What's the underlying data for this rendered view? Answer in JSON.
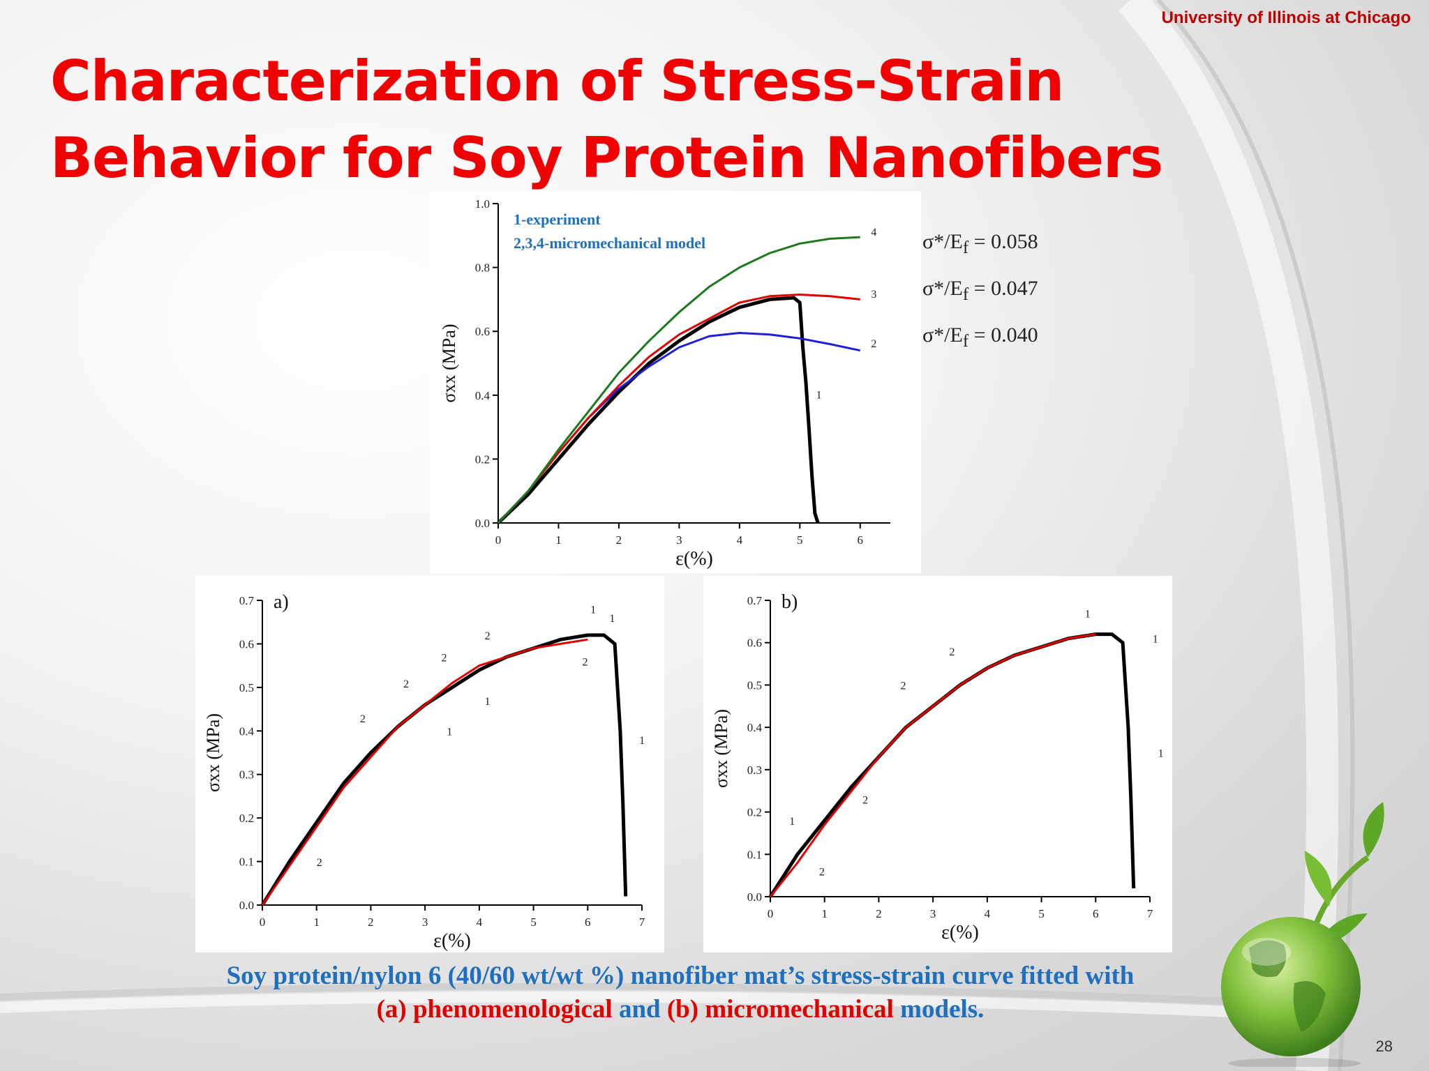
{
  "header": {
    "university": "University of Illinois at Chicago"
  },
  "slide": {
    "title_line1": "Characterization of Stress-Strain",
    "title_line2": "Behavior for Soy Protein Nanofibers",
    "page_number": "28"
  },
  "equations": [
    {
      "label": "σ*/E",
      "sub": "f",
      "value": "= 0.058"
    },
    {
      "label": "σ*/E",
      "sub": "f",
      "value": "= 0.047"
    },
    {
      "label": "σ*/E",
      "sub": "f",
      "value": "= 0.040"
    }
  ],
  "caption": {
    "line1": "Soy protein/nylon 6 (40/60 wt/wt %) nanofiber mat’s stress-strain curve fitted with",
    "part_a": "(a) phenomenological",
    "and": " and ",
    "part_b": "(b) micromechanical",
    "models": " models."
  },
  "colors": {
    "title": "#f00000",
    "caption": "#1f6fbf",
    "exp": "#000000",
    "fit": "#e00000",
    "model2": "#1f1fd6",
    "model4": "#1a7a1a",
    "legend": "#1f6fbf"
  },
  "chart_data": [
    {
      "type": "line",
      "xlabel": "ε(%)",
      "ylabel": "σxx (MPa)",
      "xlim": [
        0,
        6.5
      ],
      "ylim": [
        0,
        1.0
      ],
      "xticks": [
        "0",
        "1",
        "2",
        "3",
        "4",
        "5",
        "6"
      ],
      "yticks": [
        "0.0",
        "0.2",
        "0.4",
        "0.6",
        "0.8",
        "1.0"
      ],
      "legend": [
        "1-experiment",
        "2,3,4-micromechanical model"
      ],
      "series": [
        {
          "name": "1",
          "color": "#000000",
          "x": [
            0,
            0.5,
            1,
            1.5,
            2,
            2.5,
            3,
            3.5,
            4,
            4.5,
            4.9,
            5.0,
            5.05,
            5.1,
            5.15,
            5.2,
            5.25,
            5.3
          ],
          "y": [
            0,
            0.09,
            0.2,
            0.31,
            0.41,
            0.5,
            0.57,
            0.63,
            0.675,
            0.7,
            0.705,
            0.69,
            0.55,
            0.44,
            0.3,
            0.15,
            0.03,
            0
          ]
        },
        {
          "name": "2",
          "color": "#1f1fd6",
          "x": [
            0,
            0.5,
            1,
            1.5,
            2,
            2.5,
            3,
            3.5,
            4,
            4.5,
            5,
            5.5,
            6
          ],
          "y": [
            0,
            0.1,
            0.22,
            0.33,
            0.42,
            0.49,
            0.55,
            0.585,
            0.595,
            0.59,
            0.578,
            0.56,
            0.54
          ]
        },
        {
          "name": "3",
          "color": "#e00000",
          "x": [
            0,
            0.5,
            1,
            1.5,
            2,
            2.5,
            3,
            3.5,
            4,
            4.5,
            5,
            5.5,
            6
          ],
          "y": [
            0,
            0.1,
            0.22,
            0.33,
            0.43,
            0.52,
            0.59,
            0.64,
            0.69,
            0.71,
            0.715,
            0.71,
            0.7
          ]
        },
        {
          "name": "4",
          "color": "#1a7a1a",
          "x": [
            0,
            0.5,
            1,
            1.5,
            2,
            2.5,
            3,
            3.5,
            4,
            4.5,
            5,
            5.5,
            6
          ],
          "y": [
            0,
            0.1,
            0.23,
            0.35,
            0.47,
            0.57,
            0.66,
            0.74,
            0.8,
            0.845,
            0.875,
            0.89,
            0.895
          ]
        }
      ],
      "point_labels": [
        "4",
        "3",
        "2",
        "1"
      ]
    },
    {
      "type": "line",
      "panel": "a)",
      "xlabel": "ε(%)",
      "ylabel": "σxx (MPa)",
      "xlim": [
        0,
        7
      ],
      "ylim": [
        0,
        0.7
      ],
      "xticks": [
        "0",
        "1",
        "2",
        "3",
        "4",
        "5",
        "6",
        "7"
      ],
      "yticks": [
        "0.0",
        "0.1",
        "0.2",
        "0.3",
        "0.4",
        "0.5",
        "0.6",
        "0.7"
      ],
      "series": [
        {
          "name": "1",
          "color": "#000000",
          "x": [
            0,
            0.5,
            1,
            1.5,
            2,
            2.5,
            3,
            3.5,
            4,
            4.5,
            5,
            5.5,
            6,
            6.3,
            6.5,
            6.6,
            6.65,
            6.7
          ],
          "y": [
            0,
            0.1,
            0.19,
            0.28,
            0.35,
            0.41,
            0.46,
            0.5,
            0.54,
            0.57,
            0.59,
            0.61,
            0.62,
            0.62,
            0.6,
            0.4,
            0.23,
            0.02
          ]
        },
        {
          "name": "2",
          "color": "#e00000",
          "x": [
            0,
            0.5,
            1,
            1.5,
            2,
            2.5,
            3,
            3.5,
            4,
            4.5,
            5,
            5.5,
            6
          ],
          "y": [
            0,
            0.09,
            0.18,
            0.27,
            0.34,
            0.41,
            0.46,
            0.51,
            0.55,
            0.57,
            0.59,
            0.6,
            0.61
          ]
        }
      ],
      "point_labels": [
        "1",
        "2",
        "2",
        "2",
        "2",
        "2",
        "2",
        "1",
        "1",
        "1",
        "1"
      ]
    },
    {
      "type": "line",
      "panel": "b)",
      "xlabel": "ε(%)",
      "ylabel": "σxx (MPa)",
      "xlim": [
        0,
        7
      ],
      "ylim": [
        0,
        0.7
      ],
      "xticks": [
        "0",
        "1",
        "2",
        "3",
        "4",
        "5",
        "6",
        "7"
      ],
      "yticks": [
        "0.0",
        "0.1",
        "0.2",
        "0.3",
        "0.4",
        "0.5",
        "0.6",
        "0.7"
      ],
      "series": [
        {
          "name": "1",
          "color": "#000000",
          "x": [
            0,
            0.5,
            1,
            1.5,
            2,
            2.5,
            3,
            3.5,
            4,
            4.5,
            5,
            5.5,
            6,
            6.3,
            6.5,
            6.6,
            6.65,
            6.7
          ],
          "y": [
            0,
            0.1,
            0.18,
            0.26,
            0.33,
            0.4,
            0.45,
            0.5,
            0.54,
            0.57,
            0.59,
            0.61,
            0.62,
            0.62,
            0.6,
            0.4,
            0.23,
            0.02
          ]
        },
        {
          "name": "2",
          "color": "#e00000",
          "x": [
            0,
            0.5,
            1,
            1.5,
            2,
            2.5,
            3,
            3.5,
            4,
            4.5,
            5,
            5.5,
            6
          ],
          "y": [
            0,
            0.08,
            0.17,
            0.25,
            0.33,
            0.4,
            0.45,
            0.5,
            0.54,
            0.57,
            0.59,
            0.61,
            0.62
          ]
        }
      ],
      "point_labels": [
        "1",
        "1",
        "1",
        "1",
        "2",
        "2",
        "2",
        "2"
      ]
    }
  ]
}
